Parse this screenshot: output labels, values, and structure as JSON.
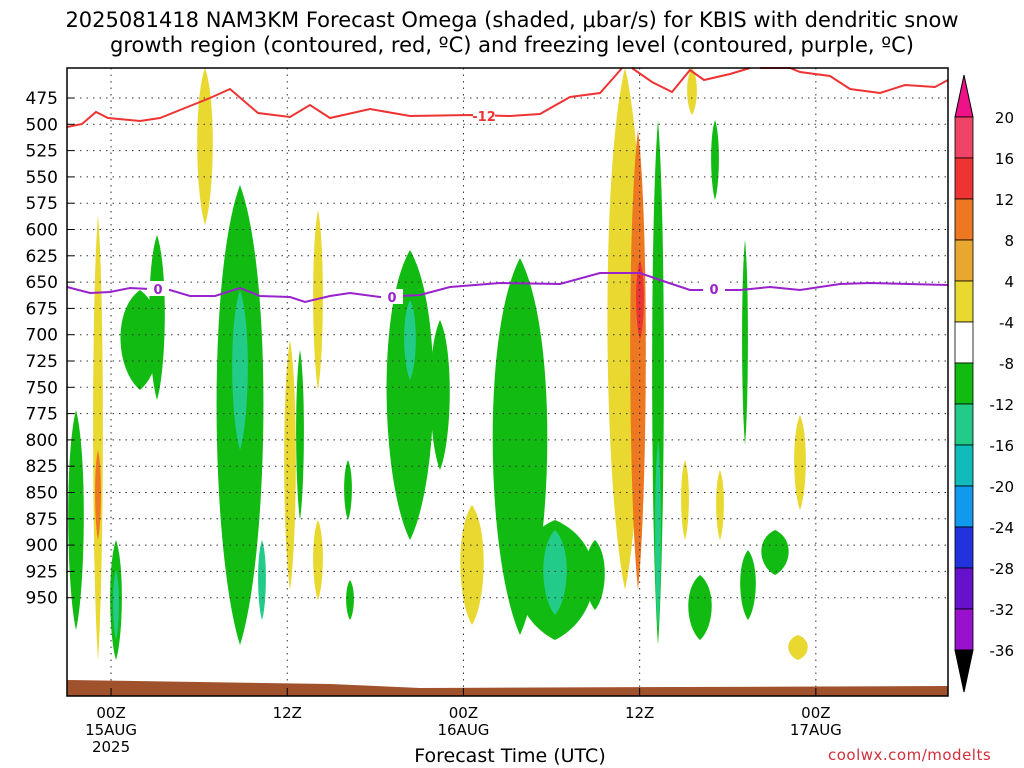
{
  "title_line1": "2025081418 NAM3KM Forecast Omega (shaded, μbar/s) for KBIS with dendritic snow",
  "title_line2": "growth region (contoured, red, ºC) and freezing level (contoured, purple, ºC)",
  "credit": "coolwx.com/modelts",
  "chart_data": {
    "type": "heatmap",
    "xlabel": "Forecast Time (UTC)",
    "x_range_hours": [
      -3,
      57
    ],
    "x_ticks": [
      {
        "hour": 0,
        "lines": [
          "00Z",
          "15AUG",
          "2025"
        ]
      },
      {
        "hour": 12,
        "lines": [
          "12Z"
        ]
      },
      {
        "hour": 24,
        "lines": [
          "00Z",
          "16AUG"
        ]
      },
      {
        "hour": 36,
        "lines": [
          "12Z"
        ]
      },
      {
        "hour": 48,
        "lines": [
          "00Z",
          "17AUG"
        ]
      }
    ],
    "y_ticks_mb": [
      475,
      500,
      525,
      550,
      575,
      600,
      625,
      650,
      675,
      700,
      725,
      750,
      775,
      800,
      825,
      850,
      875,
      900,
      925,
      950
    ],
    "colorbar": {
      "labels": [
        20,
        16,
        12,
        8,
        4,
        -4,
        -8,
        -12,
        -16,
        -20,
        -24,
        -28,
        -32,
        -36
      ],
      "colors": [
        "#ee4466",
        "#ee3333",
        "#ee7722",
        "#e8a830",
        "#e8d830",
        "#ffffff",
        "#11bb11",
        "#22cc88",
        "#11bbbb",
        "#1199ee",
        "#2233dd",
        "#6611cc",
        "#9911cc",
        "#aaaaaa"
      ],
      "top_triangle_color": "#ee1188",
      "bottom_triangle_color": "#000000"
    },
    "contours": [
      {
        "label": "-12",
        "color": "#ee3333"
      },
      {
        "label": "0",
        "color": "#9922cc"
      }
    ],
    "ground_color": "#a0522d"
  }
}
